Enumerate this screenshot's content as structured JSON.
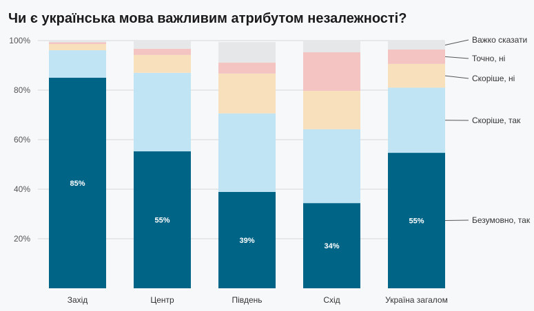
{
  "chart_data": {
    "type": "bar",
    "stacked": true,
    "title": "Чи є українська мова важливим атрибутом незалежності?",
    "categories": [
      "Захід",
      "Центр",
      "Південь",
      "Схід",
      "Україна загалом"
    ],
    "ylim": [
      0,
      100
    ],
    "yticks": [
      "20%",
      "40%",
      "60%",
      "80%",
      "100%"
    ],
    "ytick_values": [
      20,
      40,
      60,
      80,
      100
    ],
    "grid": true,
    "legend_placement": "right (inline labels)",
    "series": [
      {
        "name": "Безумовно, так",
        "color": "#006487",
        "values": [
          85,
          55.3,
          38.9,
          34.4,
          54.7
        ],
        "labels": [
          "85%",
          "55%",
          "39%",
          "34%",
          "55%"
        ]
      },
      {
        "name": "Скоріше, так",
        "color": "#c0e4f4",
        "values": [
          11.1,
          31.7,
          31.7,
          29.8,
          26.3
        ]
      },
      {
        "name": "Скоріше, ні",
        "color": "#f8e0bc",
        "values": [
          2.5,
          7.2,
          16.1,
          15.5,
          9.6
        ]
      },
      {
        "name": "Точно, ні",
        "color": "#f3c4c1",
        "values": [
          0.7,
          2.5,
          4.4,
          15.6,
          5.8
        ]
      },
      {
        "name": "Важко сказати",
        "color": "#e6e7e9",
        "values": [
          0.7,
          3.3,
          8.3,
          4.7,
          3.6
        ]
      }
    ]
  }
}
